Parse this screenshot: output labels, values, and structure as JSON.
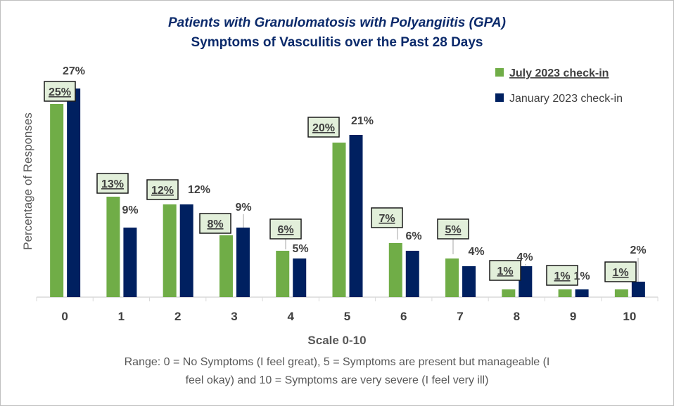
{
  "chart_data": {
    "type": "bar",
    "title": "Patients with Granulomatosis  with Polyangiitis (GPA)",
    "subtitle": "Symptoms of Vasculitis over the Past 28 Days",
    "xlabel": "Scale 0-10",
    "ylabel": "Percentage of Responses",
    "categories": [
      "0",
      "1",
      "2",
      "3",
      "4",
      "5",
      "6",
      "7",
      "8",
      "9",
      "10"
    ],
    "series": [
      {
        "name": "July 2023 check-in",
        "color": "#70AD47",
        "values": [
          25,
          13,
          12,
          8,
          6,
          20,
          7,
          5,
          1,
          1,
          1
        ],
        "labels": [
          "25%",
          "13%",
          "12%",
          "8%",
          "6%",
          "20%",
          "7%",
          "5%",
          "1%",
          "1%",
          "1%"
        ]
      },
      {
        "name": "January 2023 check-in",
        "color": "#002060",
        "values": [
          27,
          9,
          12,
          9,
          5,
          21,
          6,
          4,
          4,
          1,
          2
        ],
        "labels": [
          "27%",
          "9%",
          "12%",
          "9%",
          "5%",
          "21%",
          "6%",
          "4%",
          "4%",
          "1%",
          "2%"
        ]
      }
    ],
    "ylim": [
      0,
      28
    ],
    "grid": false,
    "legend": "top-right",
    "note_lines": [
      "Range: 0 = No Symptoms (I feel great), 5 = Symptoms are present but manageable (I",
      "feel okay) and 10 = Symptoms are very severe (I feel very ill)"
    ]
  }
}
